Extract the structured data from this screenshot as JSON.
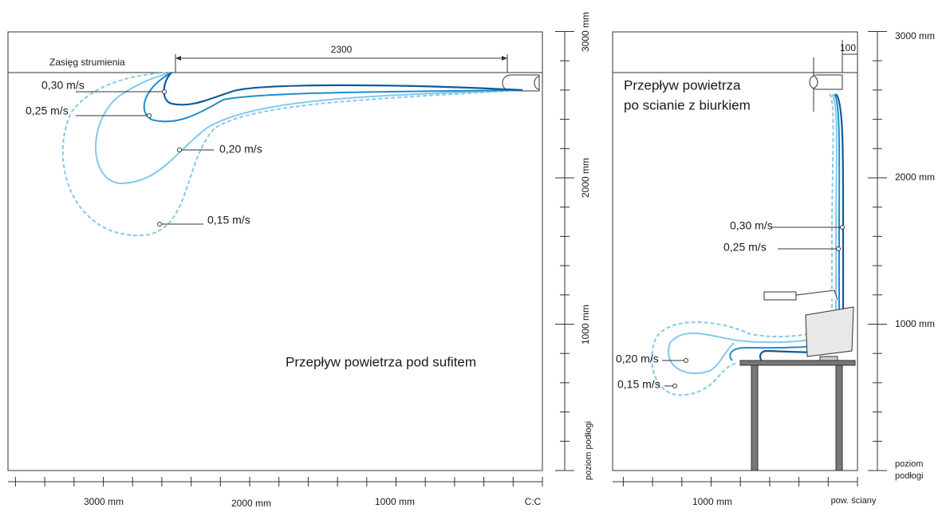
{
  "left_panel": {
    "range_label": "Zasięg strumienia",
    "distance": "2300",
    "speeds": [
      "0,30 m/s",
      "0,25 m/s",
      "0,20 m/s",
      "0,15 m/s"
    ],
    "caption": "Przepływ powietrza pod sufitem",
    "height_axis": [
      "3000 mm",
      "2000 mm",
      "1000 mm",
      "poziom podłogi"
    ],
    "width_axis": [
      "3000 mm",
      "2000 mm",
      "1000 mm",
      "C:C"
    ]
  },
  "right_panel": {
    "offset": "100",
    "caption": [
      "Przepływ powietrza",
      "po scianie z biurkiem"
    ],
    "speeds": [
      "0,30 m/s",
      "0,25 m/s",
      "0,20 m/s",
      "0,15 m/s"
    ],
    "height_axis": [
      "3000 mm",
      "2000 mm",
      "1000 mm",
      "poziom",
      "podłogi"
    ],
    "width_axis": [
      "1000 mm",
      "pow. ściany"
    ]
  }
}
